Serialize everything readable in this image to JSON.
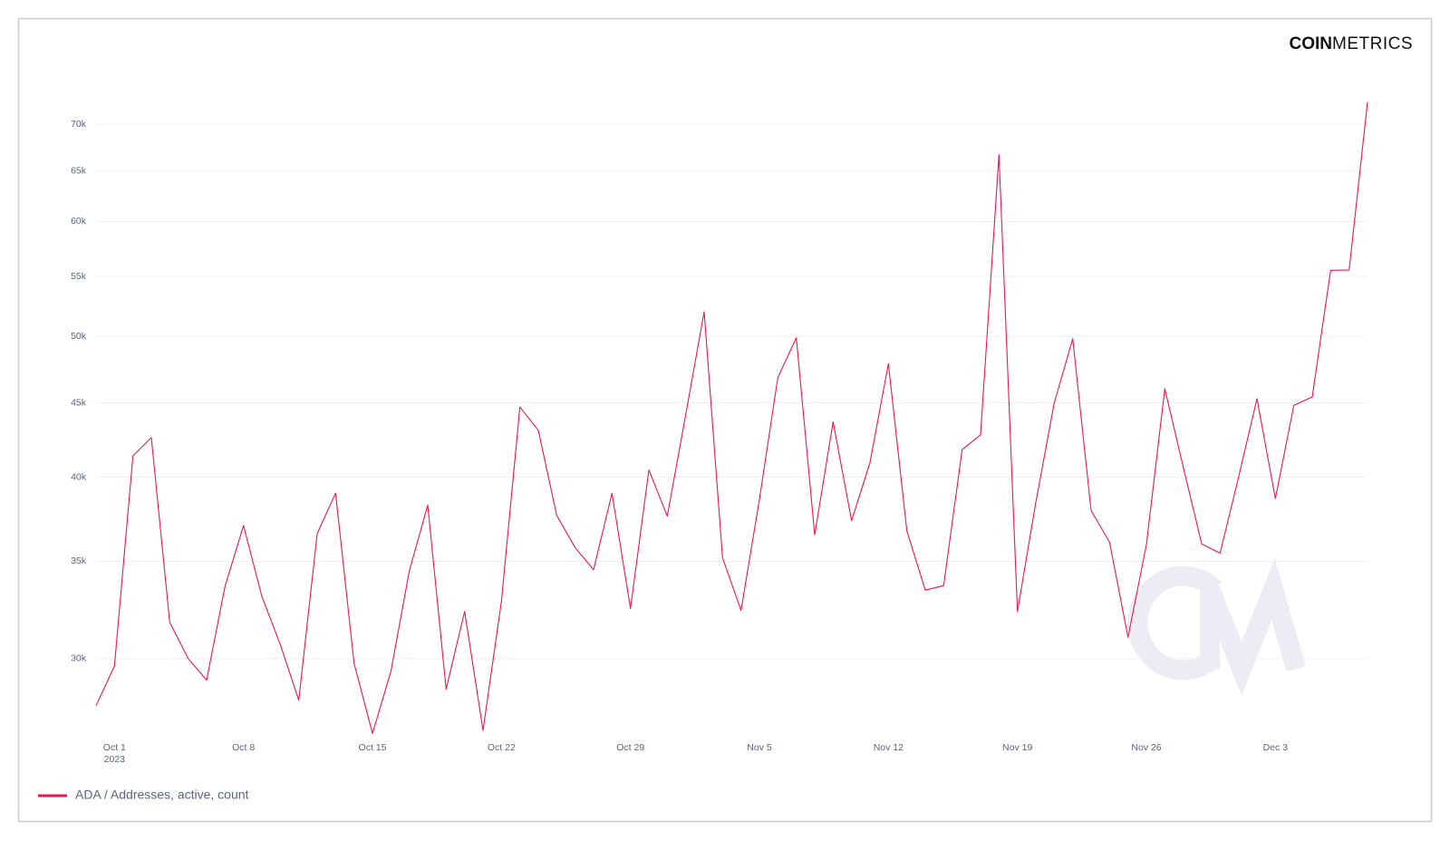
{
  "chart_data": {
    "type": "line",
    "logo": {
      "bold": "COIN",
      "light": "METRICS"
    },
    "x": [
      "2023-09-30",
      "2023-10-01",
      "2023-10-02",
      "2023-10-03",
      "2023-10-04",
      "2023-10-05",
      "2023-10-06",
      "2023-10-07",
      "2023-10-08",
      "2023-10-09",
      "2023-10-10",
      "2023-10-11",
      "2023-10-12",
      "2023-10-13",
      "2023-10-14",
      "2023-10-15",
      "2023-10-16",
      "2023-10-17",
      "2023-10-18",
      "2023-10-19",
      "2023-10-20",
      "2023-10-21",
      "2023-10-22",
      "2023-10-23",
      "2023-10-24",
      "2023-10-25",
      "2023-10-26",
      "2023-10-27",
      "2023-10-28",
      "2023-10-29",
      "2023-10-30",
      "2023-10-31",
      "2023-11-01",
      "2023-11-02",
      "2023-11-03",
      "2023-11-04",
      "2023-11-05",
      "2023-11-06",
      "2023-11-07",
      "2023-11-08",
      "2023-11-09",
      "2023-11-10",
      "2023-11-11",
      "2023-11-12",
      "2023-11-13",
      "2023-11-14",
      "2023-11-15",
      "2023-11-16",
      "2023-11-17",
      "2023-11-18",
      "2023-11-19",
      "2023-11-20",
      "2023-11-21",
      "2023-11-22",
      "2023-11-23",
      "2023-11-24",
      "2023-11-25",
      "2023-11-26",
      "2023-11-27",
      "2023-11-28",
      "2023-11-29",
      "2023-11-30",
      "2023-12-01",
      "2023-12-02",
      "2023-12-03",
      "2023-12-04",
      "2023-12-05",
      "2023-12-06",
      "2023-12-07",
      "2023-12-08"
    ],
    "series": [
      {
        "name": "ADA / Addresses, active, count",
        "color": "#e8174f",
        "values": [
          27840,
          29650,
          41370,
          42590,
          31770,
          30000,
          28990,
          33640,
          37050,
          33100,
          30670,
          28080,
          36570,
          39000,
          29780,
          26640,
          29390,
          34480,
          38270,
          28580,
          32330,
          26770,
          32850,
          44700,
          43090,
          37650,
          35770,
          34540,
          39000,
          32470,
          40460,
          37600,
          44180,
          52000,
          35200,
          32380,
          38610,
          46850,
          49900,
          36510,
          43670,
          37330,
          40940,
          47890,
          36730,
          33440,
          33680,
          41790,
          42780,
          66710,
          32330,
          38440,
          45000,
          49830,
          37930,
          36090,
          31030,
          35930,
          46030,
          40640,
          35980,
          35460,
          40000,
          45300,
          38660,
          44830,
          45430,
          55530,
          55560,
          72520
        ]
      }
    ],
    "xlim": [
      "2023-09-30",
      "2023-12-08"
    ],
    "xticks": [
      {
        "value": "2023-10-01",
        "label": "Oct 1"
      },
      {
        "value": "2023-10-08",
        "label": "Oct 8"
      },
      {
        "value": "2023-10-15",
        "label": "Oct 15"
      },
      {
        "value": "2023-10-22",
        "label": "Oct 22"
      },
      {
        "value": "2023-10-29",
        "label": "Oct 29"
      },
      {
        "value": "2023-11-05",
        "label": "Nov 5"
      },
      {
        "value": "2023-11-12",
        "label": "Nov 12"
      },
      {
        "value": "2023-11-19",
        "label": "Nov 19"
      },
      {
        "value": "2023-11-26",
        "label": "Nov 26"
      },
      {
        "value": "2023-12-03",
        "label": "Dec 3"
      }
    ],
    "xtick_year": "2023",
    "ylim": [
      26500,
      73000
    ],
    "log_scale": true,
    "yticks": [
      {
        "value": 30000,
        "label": "30k"
      },
      {
        "value": 35000,
        "label": "35k"
      },
      {
        "value": 40000,
        "label": "40k"
      },
      {
        "value": 45000,
        "label": "45k"
      },
      {
        "value": 50000,
        "label": "50k"
      },
      {
        "value": 55000,
        "label": "55k"
      },
      {
        "value": 60000,
        "label": "60k"
      },
      {
        "value": 65000,
        "label": "65k"
      },
      {
        "value": 70000,
        "label": "70k"
      }
    ],
    "grid": true,
    "legend": "bottom-left"
  }
}
